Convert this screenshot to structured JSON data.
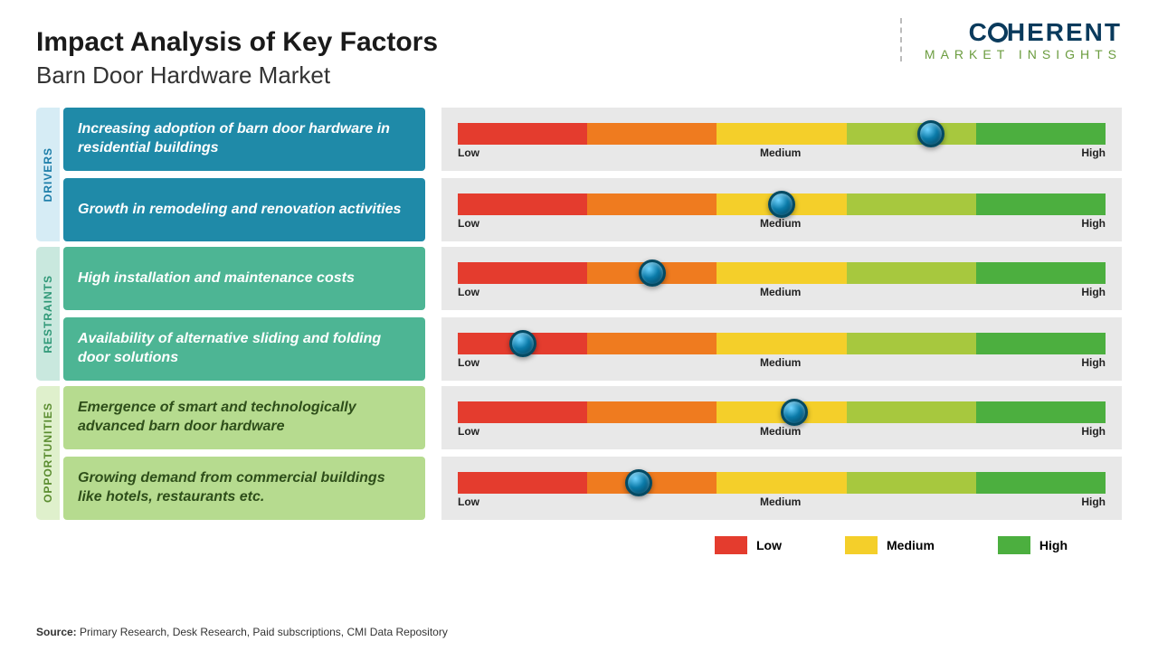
{
  "title": "Impact Analysis of Key Factors",
  "subtitle": "Barn Door Hardware Market",
  "logo": {
    "brand": "COHERENT",
    "tag": "MARKET INSIGHTS"
  },
  "colors": {
    "drivers_tab_bg": "#d6ecf5",
    "drivers_tab_text": "#1a7ca8",
    "restraints_tab_bg": "#c9e8de",
    "restraints_tab_text": "#2f9877",
    "opps_tab_bg": "#dff0cc",
    "opps_tab_text": "#5a8c2f",
    "drivers_box": "#1f8aa8",
    "restraints_box": "#4db594",
    "opps_box": "#b6db8f",
    "opps_text": "#2e4e1a",
    "segments": [
      "#e43c2e",
      "#ef7b1f",
      "#f4cf2a",
      "#a7c83e",
      "#4caf3f"
    ]
  },
  "scale_labels": {
    "low": "Low",
    "medium": "Medium",
    "high": "High"
  },
  "groups": [
    {
      "key": "drivers",
      "label": "DRIVERS",
      "tab_bg": "#d6ecf5",
      "tab_text": "#1a7ca8",
      "box_bg": "#1f8aa8",
      "box_text": "#ffffff",
      "rows": [
        {
          "text": "Increasing adoption of barn door hardware in residential buildings",
          "marker_pct": 73
        },
        {
          "text": " Growth in remodeling and renovation activities",
          "marker_pct": 50
        }
      ]
    },
    {
      "key": "restraints",
      "label": "RESTRAINTS",
      "tab_bg": "#c9e8de",
      "tab_text": "#2f9877",
      "box_bg": "#4db594",
      "box_text": "#ffffff",
      "rows": [
        {
          "text": "High installation and maintenance costs",
          "marker_pct": 30
        },
        {
          "text": "Availability of alternative sliding and folding door solutions",
          "marker_pct": 10
        }
      ]
    },
    {
      "key": "opportunities",
      "label": "OPPORTUNITIES",
      "tab_bg": "#dff0cc",
      "tab_text": "#5a8c2f",
      "box_bg": "#b6db8f",
      "box_text": "#2e4e1a",
      "rows": [
        {
          "text": "Emergence of smart and technologically advanced barn door hardware",
          "marker_pct": 52
        },
        {
          "text": "Growing demand from commercial buildings like hotels, restaurants etc.",
          "marker_pct": 28
        }
      ]
    }
  ],
  "legend": [
    {
      "label": "Low",
      "color": "#e43c2e"
    },
    {
      "label": "Medium",
      "color": "#f4cf2a"
    },
    {
      "label": "High",
      "color": "#4caf3f"
    }
  ],
  "source": {
    "prefix": "Source:",
    "text": " Primary Research, Desk Research, Paid subscriptions, CMI Data Repository"
  }
}
